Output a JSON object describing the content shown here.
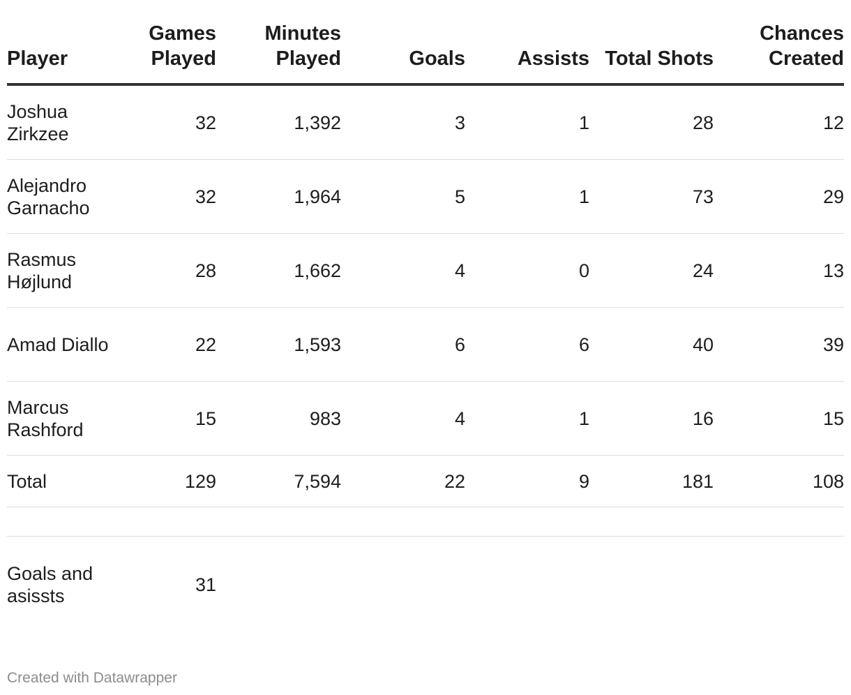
{
  "chart_data": {
    "type": "table",
    "columns": [
      "Player",
      "Games Played",
      "Minutes Played",
      "Goals",
      "Assists",
      "Total Shots",
      "Chances Created"
    ],
    "rows": [
      [
        "Joshua Zirkzee",
        "32",
        "1,392",
        "3",
        "1",
        "28",
        "12"
      ],
      [
        "Alejandro Garnacho",
        "32",
        "1,964",
        "5",
        "1",
        "73",
        "29"
      ],
      [
        "Rasmus Højlund",
        "28",
        "1,662",
        "4",
        "0",
        "24",
        "13"
      ],
      [
        "Amad Diallo",
        "22",
        "1,593",
        "6",
        "6",
        "40",
        "39"
      ],
      [
        "Marcus Rashford",
        "15",
        "983",
        "4",
        "1",
        "16",
        "15"
      ]
    ],
    "total_row": [
      "Total",
      "129",
      "7,594",
      "22",
      "9",
      "181",
      "108"
    ],
    "goals_and_assists_row": [
      "Goals and asissts",
      "31"
    ]
  },
  "footer": "Created with Datawrapper",
  "colors": {
    "text": "#1d1d1d",
    "header_rule": "#333333",
    "row_rule": "#dddddd",
    "footer": "#8c8c8c"
  }
}
